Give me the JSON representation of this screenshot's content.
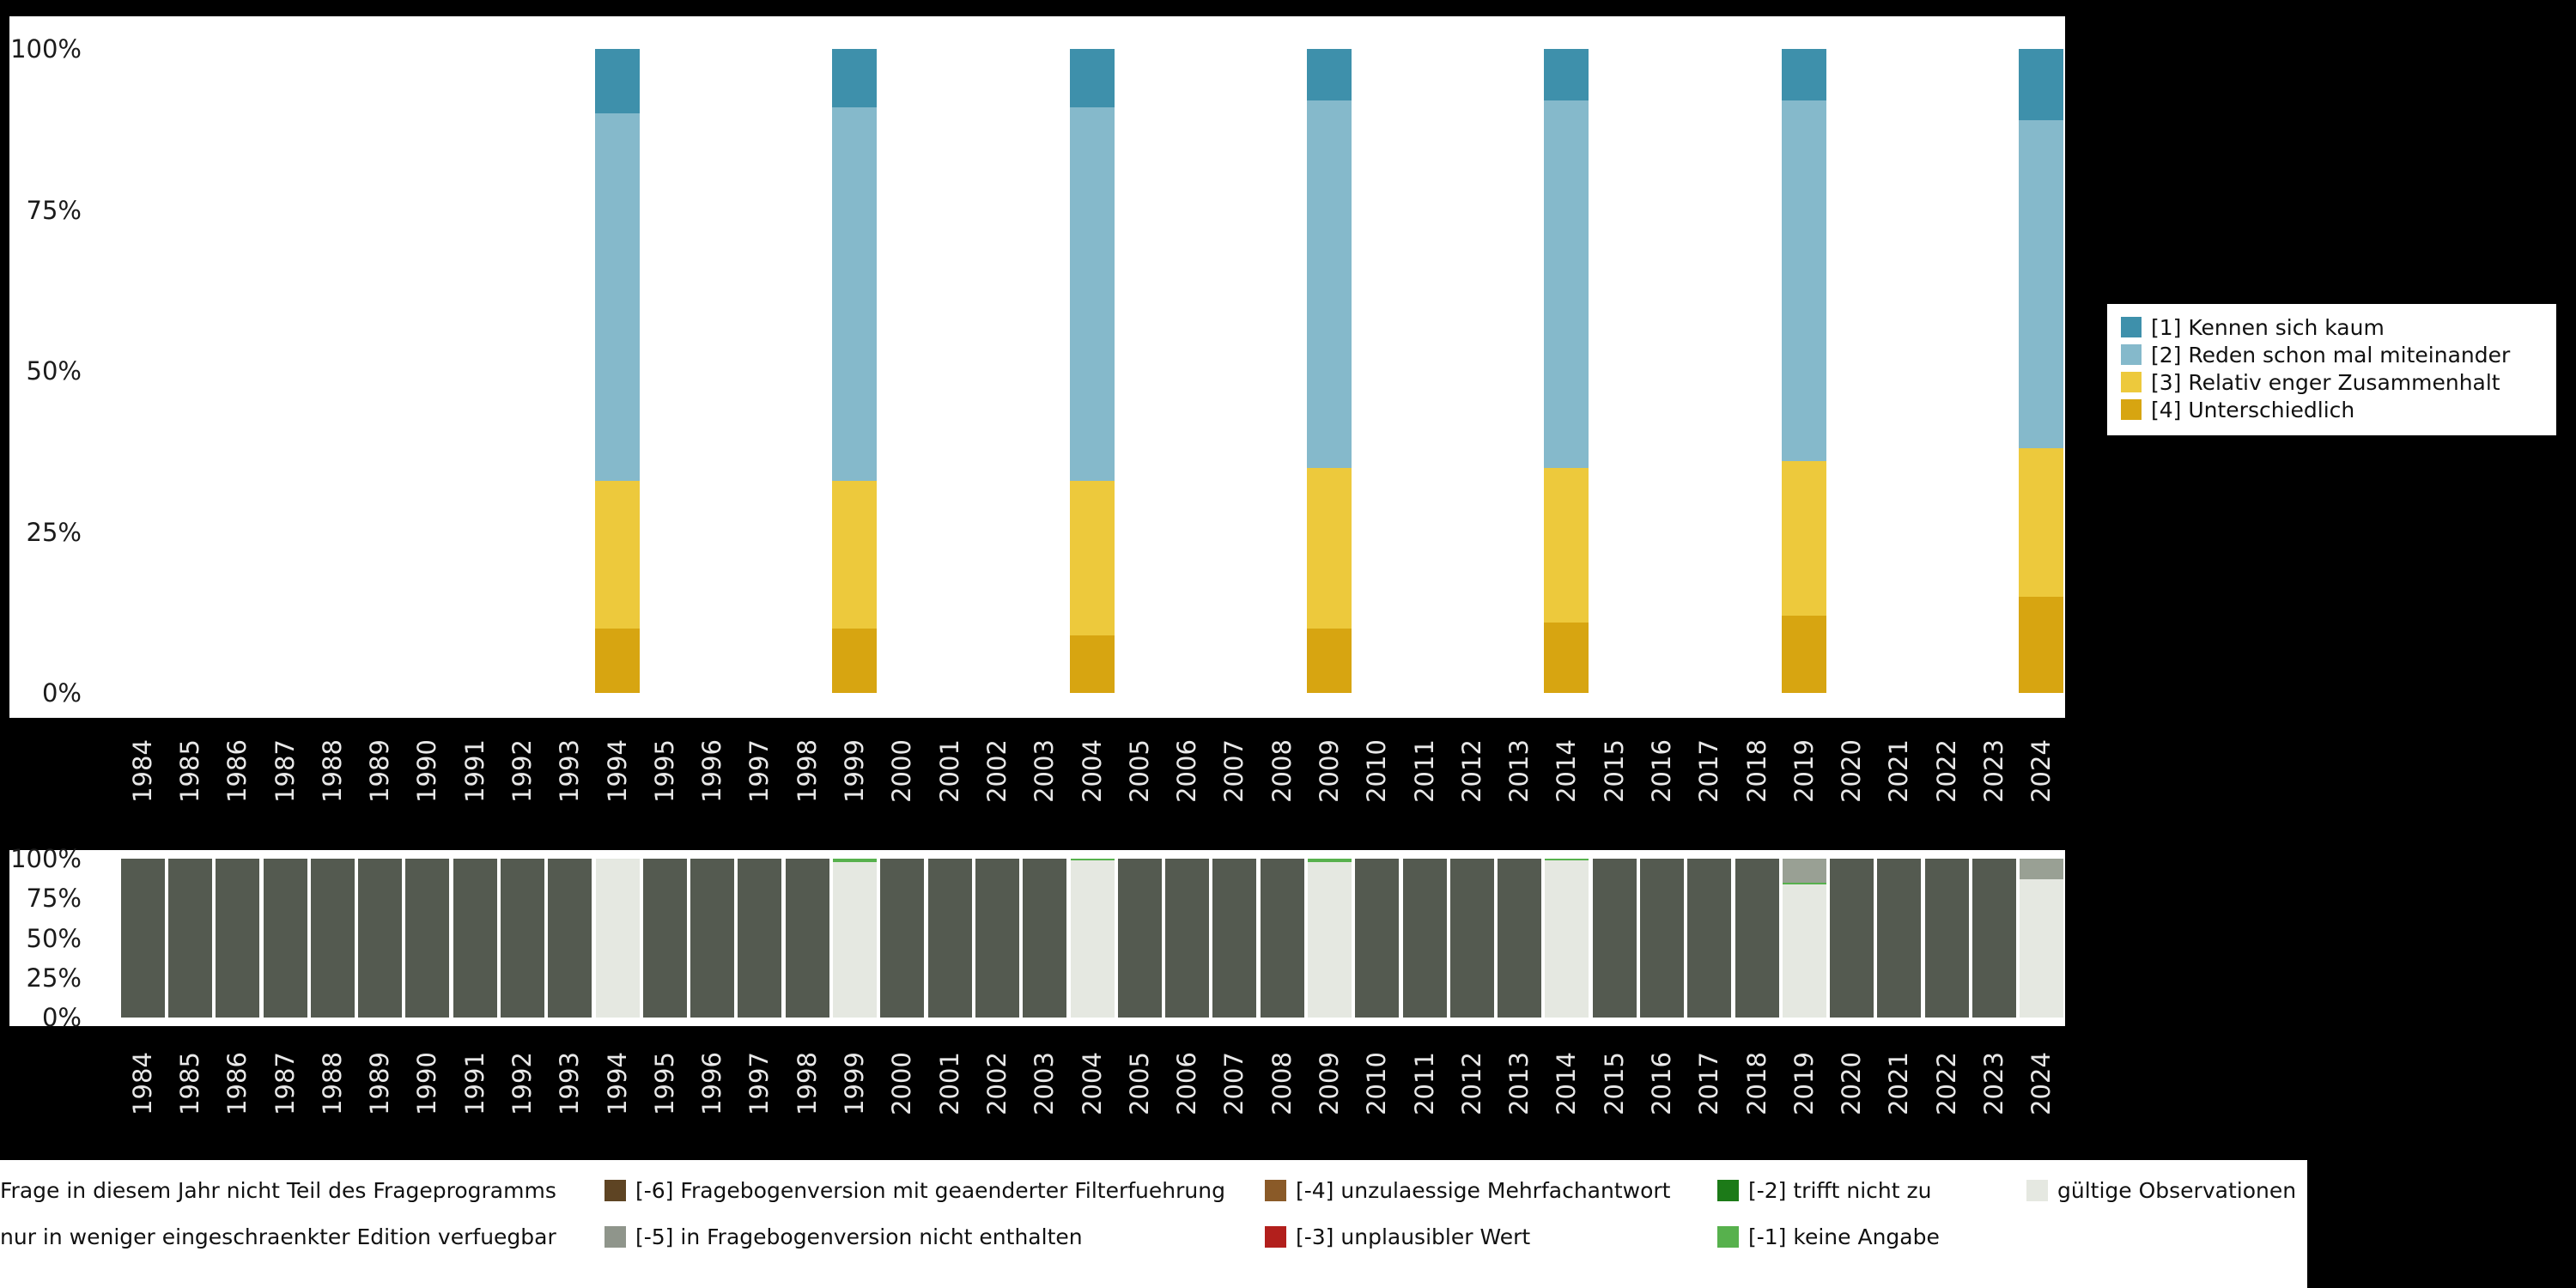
{
  "chart_data": [
    {
      "id": "main",
      "type": "bar",
      "stacked": true,
      "unit": "percent",
      "ylim": [
        0,
        100
      ],
      "grid": false,
      "legend_position": "right",
      "y_ticks": [
        "100%",
        "75%",
        "50%",
        "25%",
        "0%"
      ],
      "years": [
        "1984",
        "1985",
        "1986",
        "1987",
        "1988",
        "1989",
        "1990",
        "1991",
        "1992",
        "1993",
        "1994",
        "1995",
        "1996",
        "1997",
        "1998",
        "1999",
        "2000",
        "2001",
        "2002",
        "2003",
        "2004",
        "2005",
        "2006",
        "2007",
        "2008",
        "2009",
        "2010",
        "2011",
        "2012",
        "2013",
        "2014",
        "2015",
        "2016",
        "2017",
        "2018",
        "2019",
        "2020",
        "2021",
        "2022",
        "2023",
        "2024"
      ],
      "legend": [
        {
          "label": "[1] Kennen sich kaum",
          "color": "#3e90ab"
        },
        {
          "label": "[2] Reden schon mal miteinander",
          "color": "#85b9cb"
        },
        {
          "label": "[3] Relativ enger Zusammenhalt",
          "color": "#edc93c"
        },
        {
          "label": "[4] Unterschiedlich",
          "color": "#d7a511"
        }
      ],
      "bars": [
        {
          "year": "1994",
          "values": [
            10,
            57,
            23,
            10
          ]
        },
        {
          "year": "1999",
          "values": [
            9,
            58,
            23,
            10
          ]
        },
        {
          "year": "2004",
          "values": [
            9,
            58,
            24,
            9
          ]
        },
        {
          "year": "2009",
          "values": [
            8,
            57,
            25,
            10
          ]
        },
        {
          "year": "2014",
          "values": [
            8,
            57,
            24,
            11
          ]
        },
        {
          "year": "2019",
          "values": [
            8,
            56,
            24,
            12
          ]
        },
        {
          "year": "2024",
          "values": [
            11,
            51,
            23,
            15
          ]
        }
      ]
    },
    {
      "id": "missings",
      "type": "bar",
      "stacked": true,
      "unit": "percent",
      "ylim": [
        0,
        100
      ],
      "y_ticks": [
        "100%",
        "75%",
        "50%",
        "25%",
        "0%"
      ],
      "categories": {
        "not_asked": {
          "label": "Frage in diesem Jahr nicht Teil des Frageprogramms",
          "color": "#545a50"
        },
        "restricted": {
          "label": "nur in weniger eingeschraenkter Edition verfuegbar",
          "color": "#99a094"
        },
        "valid": {
          "label": "gültige Observationen",
          "color": "#e5e8e1"
        },
        "na": {
          "label": "[-1] keine Angabe",
          "color": "#57b14d"
        }
      },
      "bars": [
        {
          "year": "1984",
          "segments": [
            [
              "not_asked",
              100
            ]
          ]
        },
        {
          "year": "1985",
          "segments": [
            [
              "not_asked",
              100
            ]
          ]
        },
        {
          "year": "1986",
          "segments": [
            [
              "not_asked",
              100
            ]
          ]
        },
        {
          "year": "1987",
          "segments": [
            [
              "not_asked",
              100
            ]
          ]
        },
        {
          "year": "1988",
          "segments": [
            [
              "not_asked",
              100
            ]
          ]
        },
        {
          "year": "1989",
          "segments": [
            [
              "not_asked",
              100
            ]
          ]
        },
        {
          "year": "1990",
          "segments": [
            [
              "not_asked",
              100
            ]
          ]
        },
        {
          "year": "1991",
          "segments": [
            [
              "not_asked",
              100
            ]
          ]
        },
        {
          "year": "1992",
          "segments": [
            [
              "not_asked",
              100
            ]
          ]
        },
        {
          "year": "1993",
          "segments": [
            [
              "not_asked",
              100
            ]
          ]
        },
        {
          "year": "1994",
          "segments": [
            [
              "valid",
              100
            ]
          ]
        },
        {
          "year": "1995",
          "segments": [
            [
              "not_asked",
              100
            ]
          ]
        },
        {
          "year": "1996",
          "segments": [
            [
              "not_asked",
              100
            ]
          ]
        },
        {
          "year": "1997",
          "segments": [
            [
              "not_asked",
              100
            ]
          ]
        },
        {
          "year": "1998",
          "segments": [
            [
              "not_asked",
              100
            ]
          ]
        },
        {
          "year": "1999",
          "segments": [
            [
              "valid",
              98
            ],
            [
              "na",
              2
            ]
          ]
        },
        {
          "year": "2000",
          "segments": [
            [
              "not_asked",
              100
            ]
          ]
        },
        {
          "year": "2001",
          "segments": [
            [
              "not_asked",
              100
            ]
          ]
        },
        {
          "year": "2002",
          "segments": [
            [
              "not_asked",
              100
            ]
          ]
        },
        {
          "year": "2003",
          "segments": [
            [
              "not_asked",
              100
            ]
          ]
        },
        {
          "year": "2004",
          "segments": [
            [
              "valid",
              99
            ],
            [
              "na",
              1
            ]
          ]
        },
        {
          "year": "2005",
          "segments": [
            [
              "not_asked",
              100
            ]
          ]
        },
        {
          "year": "2006",
          "segments": [
            [
              "not_asked",
              100
            ]
          ]
        },
        {
          "year": "2007",
          "segments": [
            [
              "not_asked",
              100
            ]
          ]
        },
        {
          "year": "2008",
          "segments": [
            [
              "not_asked",
              100
            ]
          ]
        },
        {
          "year": "2009",
          "segments": [
            [
              "valid",
              98
            ],
            [
              "na",
              2
            ]
          ]
        },
        {
          "year": "2010",
          "segments": [
            [
              "not_asked",
              100
            ]
          ]
        },
        {
          "year": "2011",
          "segments": [
            [
              "not_asked",
              100
            ]
          ]
        },
        {
          "year": "2012",
          "segments": [
            [
              "not_asked",
              100
            ]
          ]
        },
        {
          "year": "2013",
          "segments": [
            [
              "not_asked",
              100
            ]
          ]
        },
        {
          "year": "2014",
          "segments": [
            [
              "valid",
              99
            ],
            [
              "na",
              1
            ]
          ]
        },
        {
          "year": "2015",
          "segments": [
            [
              "not_asked",
              100
            ]
          ]
        },
        {
          "year": "2016",
          "segments": [
            [
              "not_asked",
              100
            ]
          ]
        },
        {
          "year": "2017",
          "segments": [
            [
              "not_asked",
              100
            ]
          ]
        },
        {
          "year": "2018",
          "segments": [
            [
              "not_asked",
              100
            ]
          ]
        },
        {
          "year": "2019",
          "segments": [
            [
              "valid",
              84
            ],
            [
              "na",
              1
            ],
            [
              "restricted",
              15
            ]
          ]
        },
        {
          "year": "2020",
          "segments": [
            [
              "not_asked",
              100
            ]
          ]
        },
        {
          "year": "2021",
          "segments": [
            [
              "not_asked",
              100
            ]
          ]
        },
        {
          "year": "2022",
          "segments": [
            [
              "not_asked",
              100
            ]
          ]
        },
        {
          "year": "2023",
          "segments": [
            [
              "not_asked",
              100
            ]
          ]
        },
        {
          "year": "2024",
          "segments": [
            [
              "valid",
              87
            ],
            [
              "restricted",
              13
            ]
          ]
        }
      ]
    }
  ],
  "missings_legend": {
    "rows": [
      [
        {
          "label": "Frage in diesem Jahr nicht Teil des Frageprogramms",
          "color": "#545a50"
        },
        {
          "label": "[-6] Fragebogenversion mit geaenderter Filterfuehrung",
          "color": "#5e4423"
        },
        {
          "label": "[-4] unzulaessige Mehrfachantwort",
          "color": "#8a5a28"
        },
        {
          "label": "[-2] trifft nicht zu",
          "color": "#1c7a18"
        },
        {
          "label": "gültige Observationen",
          "color": "#e5e8e1"
        }
      ],
      [
        {
          "label": "nur in weniger eingeschraenkter Edition verfuegbar",
          "color": "#99a094"
        },
        {
          "label": "[-5] in Fragebogenversion nicht enthalten",
          "color": "#8f958b"
        },
        {
          "label": "[-3] unplausibler Wert",
          "color": "#b21f1c"
        },
        {
          "label": "[-1] keine Angabe",
          "color": "#57b14d"
        }
      ]
    ]
  },
  "colors": {
    "page_background": "#000000",
    "panel_background": "#ffffff",
    "axis_text": "#1b1b1b",
    "year_label_text": "#e8e8e8"
  }
}
